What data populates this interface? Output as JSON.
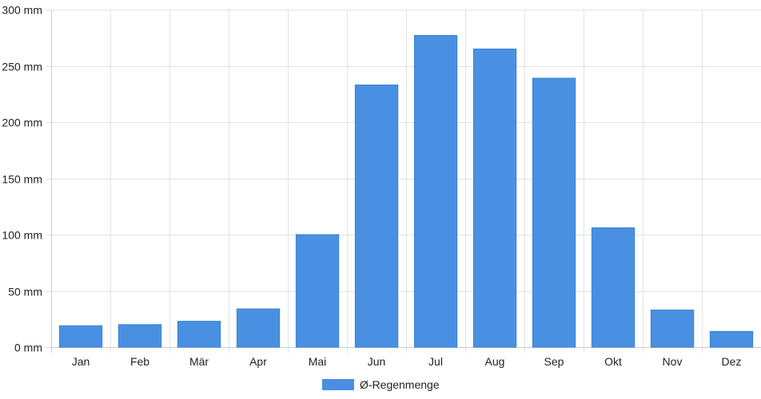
{
  "chart_data": {
    "type": "bar",
    "categories": [
      "Jan",
      "Feb",
      "Mär",
      "Apr",
      "Mai",
      "Jun",
      "Jul",
      "Aug",
      "Sep",
      "Okt",
      "Nov",
      "Dez"
    ],
    "series": [
      {
        "name": "Ø-Regenmenge",
        "values": [
          19,
          20,
          23,
          34,
          100,
          233,
          277,
          265,
          239,
          106,
          33,
          14
        ],
        "color": "#4a90e2"
      }
    ],
    "ylim": [
      0,
      300
    ],
    "y_ticks": [
      0,
      50,
      100,
      150,
      200,
      250,
      300
    ],
    "y_unit": "mm",
    "y_tick_labels": [
      "0 mm",
      "50 mm",
      "100 mm",
      "150 mm",
      "200 mm",
      "250 mm",
      "300 mm"
    ],
    "grid": true,
    "legend_position": "bottom",
    "colors": {
      "grid": "#e3e3e3",
      "axis": "#cccccc",
      "text": "#222222"
    }
  }
}
